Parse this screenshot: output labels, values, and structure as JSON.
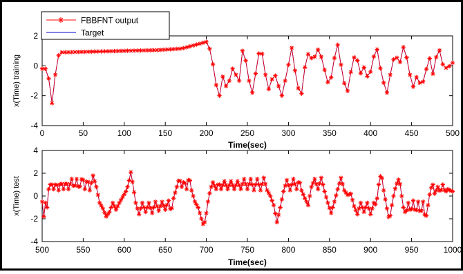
{
  "figure": {
    "border_color": "#000000"
  },
  "legend": {
    "predicted_label": "FBBFNT output",
    "target_label": "Target"
  },
  "colors": {
    "predicted": "#ff0000",
    "target": "#0000cc"
  },
  "chart_data": [
    {
      "type": "line",
      "title": "",
      "xlabel": "Time(sec)",
      "ylabel": "x(Time) training",
      "xlim": [
        0,
        500
      ],
      "ylim": [
        -4,
        2
      ],
      "xticks": [
        "0",
        "50",
        "100",
        "150",
        "200",
        "250",
        "300",
        "350",
        "400",
        "450",
        "500"
      ],
      "yticks": [
        "-4",
        "-2",
        "0",
        "2"
      ],
      "grid": false,
      "legend_position": "top-left",
      "marker_spacing": 4,
      "series_names": [
        "FBBFNT output",
        "Target"
      ],
      "series": [
        {
          "name": "FBBFNT output",
          "style": "red asterisk markers with line"
        },
        {
          "name": "Target",
          "style": "blue line"
        }
      ],
      "keypoints": [
        [
          0,
          -0.2
        ],
        [
          4,
          -0.2
        ],
        [
          7,
          -0.3
        ],
        [
          9,
          -1.4
        ],
        [
          12,
          -2.5
        ],
        [
          14,
          -1.8
        ],
        [
          16,
          -0.6
        ],
        [
          18,
          0.3
        ],
        [
          20,
          0.7
        ],
        [
          24,
          0.9
        ],
        [
          140,
          1.05
        ],
        [
          170,
          1.15
        ],
        [
          200,
          1.6
        ],
        [
          206,
          0.9
        ],
        [
          211,
          -1.1
        ],
        [
          216,
          -2.0
        ],
        [
          221,
          -0.4
        ],
        [
          226,
          -2.0
        ],
        [
          230,
          0.0
        ],
        [
          235,
          -0.5
        ],
        [
          240,
          -1.0
        ],
        [
          245,
          1.5
        ],
        [
          251,
          -0.8
        ],
        [
          256,
          -1.8
        ],
        [
          261,
          -0.2
        ],
        [
          266,
          1.5
        ],
        [
          272,
          -0.6
        ],
        [
          277,
          -1.8
        ],
        [
          282,
          -0.3
        ],
        [
          287,
          -1.2
        ],
        [
          292,
          -2.0
        ],
        [
          298,
          -0.5
        ],
        [
          304,
          1.2
        ],
        [
          309,
          -0.7
        ],
        [
          315,
          -2.3
        ],
        [
          320,
          -0.1
        ],
        [
          325,
          1.0
        ],
        [
          330,
          0.2
        ],
        [
          335,
          1.2
        ],
        [
          340,
          0.6
        ],
        [
          345,
          -0.5
        ],
        [
          350,
          -1.5
        ],
        [
          355,
          0.3
        ],
        [
          360,
          1.4
        ],
        [
          366,
          -0.6
        ],
        [
          371,
          -2.0
        ],
        [
          377,
          -0.1
        ],
        [
          382,
          1.0
        ],
        [
          387,
          -0.6
        ],
        [
          392,
          -0.1
        ],
        [
          398,
          -1.0
        ],
        [
          403,
          0.5
        ],
        [
          408,
          1.1
        ],
        [
          414,
          -0.8
        ],
        [
          420,
          -1.8
        ],
        [
          425,
          -0.3
        ],
        [
          430,
          0.9
        ],
        [
          435,
          0.0
        ],
        [
          441,
          1.5
        ],
        [
          447,
          -0.4
        ],
        [
          452,
          -1.4
        ],
        [
          457,
          -0.6
        ],
        [
          462,
          -1.5
        ],
        [
          467,
          -0.4
        ],
        [
          472,
          0.5
        ],
        [
          477,
          -0.8
        ],
        [
          482,
          1.5
        ],
        [
          488,
          0.1
        ],
        [
          493,
          -0.2
        ],
        [
          500,
          0.2
        ]
      ]
    },
    {
      "type": "line",
      "title": "",
      "xlabel": "Time(sec)",
      "ylabel": "x(Time) test",
      "xlim": [
        500,
        1000
      ],
      "ylim": [
        -4,
        4
      ],
      "xticks": [
        "500",
        "550",
        "600",
        "650",
        "700",
        "750",
        "800",
        "850",
        "900",
        "950",
        "1000"
      ],
      "yticks": [
        "-4",
        "-2",
        "0",
        "2",
        "4"
      ],
      "grid": false,
      "legend_position": "none",
      "marker_spacing": 2,
      "series_names": [
        "FBBFNT output",
        "Target"
      ],
      "series": [
        {
          "name": "FBBFNT output",
          "style": "red asterisk markers with line"
        },
        {
          "name": "Target",
          "style": "blue line"
        }
      ],
      "keypoints": [
        [
          500,
          -0.5
        ],
        [
          502,
          -1.8
        ],
        [
          504,
          -0.6
        ],
        [
          506,
          -1.0
        ],
        [
          508,
          0.6
        ],
        [
          511,
          1.2
        ],
        [
          514,
          0.6
        ],
        [
          517,
          1.2
        ],
        [
          520,
          0.5
        ],
        [
          523,
          1.3
        ],
        [
          526,
          0.6
        ],
        [
          529,
          1.3
        ],
        [
          532,
          0.6
        ],
        [
          536,
          1.5
        ],
        [
          539,
          0.6
        ],
        [
          542,
          1.5
        ],
        [
          545,
          0.5
        ],
        [
          549,
          1.8
        ],
        [
          552,
          0.6
        ],
        [
          555,
          1.6
        ],
        [
          558,
          0.5
        ],
        [
          562,
          1.8
        ],
        [
          566,
          0.8
        ],
        [
          570,
          -0.6
        ],
        [
          574,
          -1.1
        ],
        [
          578,
          -1.8
        ],
        [
          582,
          -1.4
        ],
        [
          586,
          -0.6
        ],
        [
          590,
          -1.2
        ],
        [
          594,
          -0.6
        ],
        [
          598,
          -0.1
        ],
        [
          602,
          0.4
        ],
        [
          605,
          1.0
        ],
        [
          608,
          2.1
        ],
        [
          611,
          0.8
        ],
        [
          614,
          -0.6
        ],
        [
          618,
          -1.6
        ],
        [
          622,
          -0.6
        ],
        [
          626,
          -1.4
        ],
        [
          630,
          -0.6
        ],
        [
          634,
          -1.5
        ],
        [
          638,
          -0.5
        ],
        [
          642,
          -1.3
        ],
        [
          646,
          -0.5
        ],
        [
          650,
          -1.2
        ],
        [
          654,
          -0.4
        ],
        [
          657,
          -1.5
        ],
        [
          660,
          -0.2
        ],
        [
          664,
          0.8
        ],
        [
          667,
          1.6
        ],
        [
          670,
          0.8
        ],
        [
          673,
          1.4
        ],
        [
          676,
          0.6
        ],
        [
          679,
          1.8
        ],
        [
          682,
          0.5
        ],
        [
          686,
          -0.5
        ],
        [
          690,
          -1.0
        ],
        [
          694,
          -2.0
        ],
        [
          697,
          -2.7
        ],
        [
          700,
          -1.5
        ],
        [
          702,
          -0.5
        ],
        [
          705,
          0.6
        ],
        [
          708,
          1.2
        ],
        [
          712,
          0.6
        ],
        [
          715,
          1.2
        ],
        [
          718,
          0.6
        ],
        [
          722,
          1.3
        ],
        [
          726,
          0.6
        ],
        [
          730,
          1.3
        ],
        [
          734,
          0.6
        ],
        [
          738,
          1.3
        ],
        [
          742,
          0.6
        ],
        [
          746,
          1.5
        ],
        [
          750,
          0.6
        ],
        [
          754,
          1.5
        ],
        [
          758,
          0.5
        ],
        [
          762,
          1.5
        ],
        [
          766,
          0.5
        ],
        [
          770,
          1.6
        ],
        [
          774,
          0.5
        ],
        [
          778,
          0.0
        ],
        [
          782,
          -0.8
        ],
        [
          786,
          -2.3
        ],
        [
          790,
          -1.0
        ],
        [
          794,
          0.4
        ],
        [
          798,
          1.4
        ],
        [
          802,
          0.5
        ],
        [
          806,
          1.5
        ],
        [
          810,
          0.6
        ],
        [
          813,
          1.5
        ],
        [
          816,
          0.5
        ],
        [
          820,
          -0.2
        ],
        [
          824,
          -0.8
        ],
        [
          828,
          0.8
        ],
        [
          832,
          1.5
        ],
        [
          836,
          0.6
        ],
        [
          840,
          1.6
        ],
        [
          844,
          0.4
        ],
        [
          848,
          -0.6
        ],
        [
          852,
          -1.5
        ],
        [
          856,
          -0.5
        ],
        [
          860,
          0.6
        ],
        [
          864,
          1.6
        ],
        [
          868,
          0.5
        ],
        [
          872,
          0.1
        ],
        [
          876,
          0.2
        ],
        [
          880,
          -0.9
        ],
        [
          884,
          -1.6
        ],
        [
          888,
          -0.6
        ],
        [
          892,
          -1.4
        ],
        [
          896,
          -0.6
        ],
        [
          900,
          -1.6
        ],
        [
          904,
          -0.6
        ],
        [
          907,
          -0.8
        ],
        [
          910,
          1.0
        ],
        [
          913,
          2.1
        ],
        [
          916,
          0.5
        ],
        [
          920,
          -1.1
        ],
        [
          923,
          -2.2
        ],
        [
          926,
          -0.8
        ],
        [
          929,
          0.4
        ],
        [
          932,
          1.1
        ],
        [
          935,
          1.6
        ],
        [
          937,
          0.5
        ],
        [
          940,
          -1.0
        ],
        [
          943,
          -1.6
        ],
        [
          946,
          -0.6
        ],
        [
          949,
          -1.5
        ],
        [
          952,
          -0.4
        ],
        [
          955,
          -1.6
        ],
        [
          958,
          -0.5
        ],
        [
          961,
          -1.7
        ],
        [
          964,
          -0.5
        ],
        [
          967,
          -2.2
        ],
        [
          970,
          -0.8
        ],
        [
          973,
          0.6
        ],
        [
          976,
          1.0
        ],
        [
          978,
          0.2
        ],
        [
          982,
          0.8
        ],
        [
          985,
          0.3
        ],
        [
          988,
          1.0
        ],
        [
          991,
          0.3
        ],
        [
          994,
          0.6
        ],
        [
          997,
          0.5
        ],
        [
          1000,
          0.4
        ]
      ]
    }
  ]
}
